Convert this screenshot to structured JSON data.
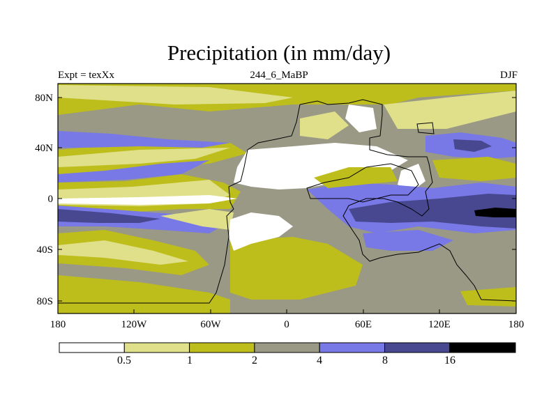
{
  "title": "Precipitation (in mm/day)",
  "subtitles": {
    "left": "Expt = texXx",
    "center": "244_6_MaBP",
    "right": "DJF"
  },
  "axes": {
    "x_ticks": [
      "180",
      "120W",
      "60W",
      "0",
      "60E",
      "120E",
      "180"
    ],
    "y_ticks": [
      "80N",
      "40N",
      "0",
      "40S",
      "80S"
    ]
  },
  "colorbar": {
    "labels": [
      "0.5",
      "1",
      "2",
      "4",
      "8",
      "16"
    ],
    "colors": [
      "#ffffff",
      "#e0e08a",
      "#bdbd1c",
      "#999986",
      "#7878e6",
      "#484890",
      "#000000"
    ]
  },
  "chart_data": {
    "type": "heatmap",
    "title": "Precipitation (in mm/day)",
    "experiment": "Expt = texXx",
    "period": "244_6_MaBP",
    "season": "DJF",
    "xlim": [
      -180,
      180
    ],
    "ylim": [
      -90,
      90
    ],
    "x_tick_values": [
      -180,
      -120,
      -60,
      0,
      60,
      120,
      180
    ],
    "y_tick_values": [
      80,
      40,
      0,
      -40,
      -80
    ],
    "contour_levels": [
      0.5,
      1,
      2,
      4,
      8,
      16
    ],
    "level_unit": "mm/day"
  }
}
